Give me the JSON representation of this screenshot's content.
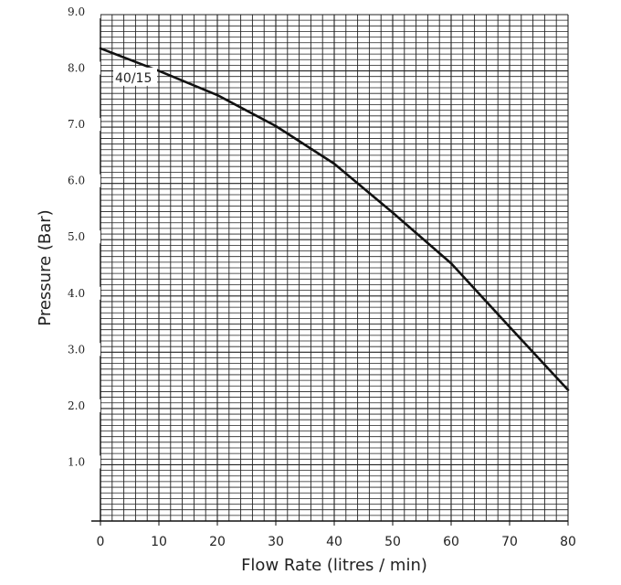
{
  "chart_data": {
    "type": "line",
    "xlabel": "Flow Rate (litres / min)",
    "ylabel": "Pressure (Bar)",
    "xlim": [
      0,
      80
    ],
    "ylim": [
      0,
      9
    ],
    "x_ticks": [
      "0",
      "10",
      "20",
      "30",
      "40",
      "50",
      "60",
      "70",
      "80"
    ],
    "y_ticks": [
      "1.0",
      "2.0",
      "3.0",
      "4.0",
      "5.0",
      "6.0",
      "7.0",
      "8.0",
      "9.0"
    ],
    "grid": true,
    "series": [
      {
        "name": "40/15",
        "color": "#111111",
        "x": [
          0,
          10,
          20,
          30,
          40,
          50,
          60,
          70,
          80
        ],
        "y": [
          8.4,
          8.0,
          7.57,
          7.02,
          6.35,
          5.48,
          4.58,
          3.45,
          2.33
        ]
      }
    ]
  }
}
